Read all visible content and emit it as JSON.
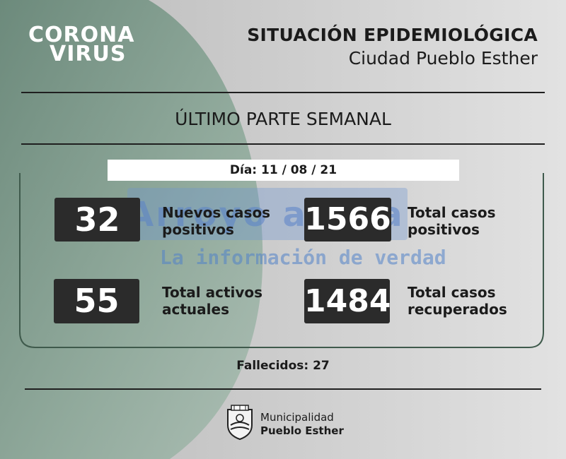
{
  "logo": {
    "line1": "CORONA",
    "line2": "VIRUS"
  },
  "header": {
    "title": "SITUACIÓN EPIDEMIOLÓGICA",
    "subtitle": "Ciudad Pueblo Esther"
  },
  "report": {
    "heading": "ÚLTIMO PARTE SEMANAL",
    "date": "Día: 11 / 08 / 21"
  },
  "stats": [
    {
      "value": "32",
      "label_line1": "Nuevos casos",
      "label_line2": "positivos"
    },
    {
      "value": "1566",
      "label_line1": "Total casos",
      "label_line2": "positivos"
    },
    {
      "value": "55",
      "label_line1": "Total activos",
      "label_line2": "actuales"
    },
    {
      "value": "1484",
      "label_line1": "Total casos",
      "label_line2": "recuperados"
    }
  ],
  "deaths": "Fallecidos: 27",
  "watermark": {
    "brand": "Arroyo al Día",
    "tagline": "La información de verdad"
  },
  "footer": {
    "line1": "Municipalidad",
    "line2": "Pueblo Esther",
    "icon": "municipal-seal-icon"
  },
  "colors": {
    "box": "#2b2b2b",
    "green_panel": "#6f8f7f",
    "background": "#d4d4d4"
  }
}
